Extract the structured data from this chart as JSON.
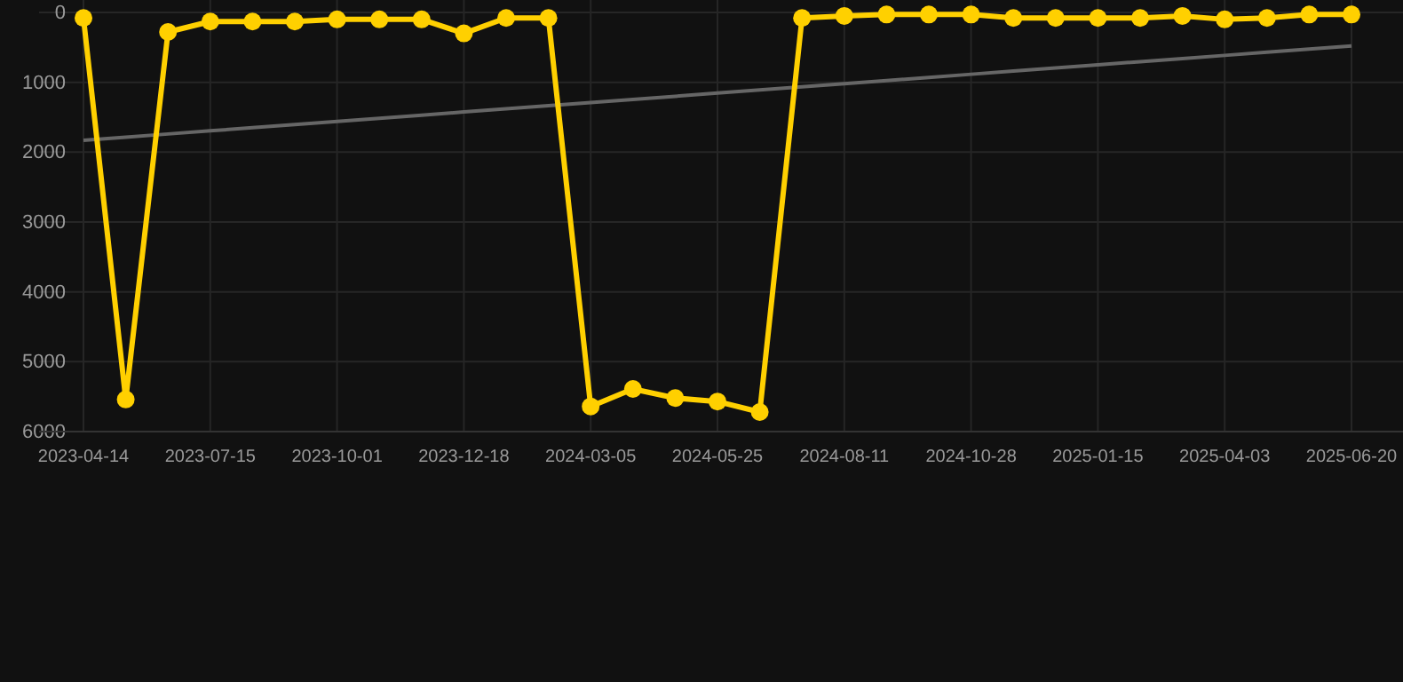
{
  "chart_data": {
    "type": "line",
    "categories": [
      "2023-04-14",
      null,
      null,
      "2023-07-15",
      null,
      null,
      "2023-10-01",
      null,
      null,
      "2023-12-18",
      null,
      null,
      "2024-03-05",
      null,
      null,
      "2024-05-25",
      null,
      null,
      "2024-08-11",
      null,
      null,
      "2024-10-28",
      null,
      null,
      "2025-01-15",
      null,
      null,
      "2025-04-03",
      null,
      null,
      "2025-06-20"
    ],
    "series": [
      {
        "color": "#ffd000",
        "marker": "circle",
        "values": [
          80,
          5540,
          280,
          130,
          130,
          130,
          100,
          100,
          100,
          300,
          80,
          80,
          5640,
          5390,
          5520,
          5570,
          5720,
          80,
          50,
          30,
          30,
          30,
          80,
          80,
          80,
          80,
          50,
          100,
          80,
          30,
          30
        ]
      },
      {
        "type": "line",
        "color": "#666666",
        "marker": "none",
        "values": [
          1830,
          1785,
          1740,
          1695,
          1650,
          1605,
          1560,
          1515,
          1470,
          1425,
          1380,
          1335,
          1290,
          1245,
          1200,
          1155,
          1110,
          1065,
          1020,
          975,
          930,
          885,
          840,
          795,
          750,
          705,
          660,
          615,
          570,
          525,
          480
        ]
      }
    ],
    "ylim": [
      6000,
      0
    ],
    "yticks": [
      0,
      1000,
      2000,
      3000,
      4000,
      5000,
      6000
    ],
    "grid": true
  }
}
